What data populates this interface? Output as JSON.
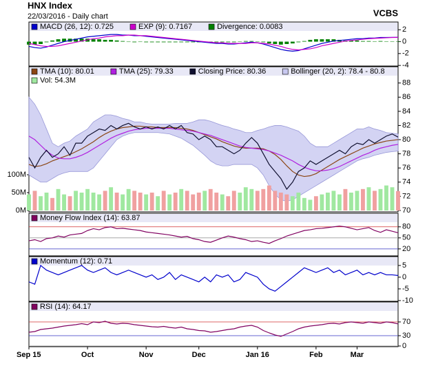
{
  "header": {
    "title": "HNX Index",
    "subtitle": "22/03/2016 - Daily chart",
    "brand": "VCBS"
  },
  "chart_data": [
    {
      "type": "line",
      "xlim": [
        0,
        63
      ],
      "ylim": [
        -4.1,
        3.3
      ],
      "yticks": [
        2,
        0,
        -2,
        -4
      ],
      "series": [
        {
          "name": "MACD (26, 12): 0.725",
          "type": "line",
          "color": "#0000cc",
          "values": [
            -0.8,
            -1,
            -1.1,
            -0.9,
            -0.6,
            -0.3,
            0,
            0.2,
            0.4,
            0.6,
            0.8,
            0.9,
            1,
            1.1,
            1.2,
            1.2,
            1.1,
            1.1,
            1,
            1,
            0.9,
            0.8,
            0.7,
            0.6,
            0.5,
            0.4,
            0.3,
            0.2,
            0.1,
            0,
            -0.1,
            -0.2,
            -0.3,
            -0.3,
            -0.4,
            -0.4,
            -0.3,
            -0.2,
            -0.1,
            -0.2,
            -0.4,
            -0.7,
            -1,
            -1.3,
            -1.5,
            -1.6,
            -1.5,
            -1.2,
            -0.9,
            -0.6,
            -0.3,
            -0.1,
            0.1,
            0.2,
            0.3,
            0.4,
            0.5,
            0.5,
            0.6,
            0.6,
            0.7,
            0.7,
            0.72,
            0.725
          ]
        },
        {
          "name": "EXP (9): 0.7167",
          "type": "line",
          "color": "#cc00cc",
          "values": [
            -0.3,
            -0.5,
            -0.7,
            -0.8,
            -0.8,
            -0.7,
            -0.5,
            -0.3,
            -0.1,
            0.1,
            0.3,
            0.5,
            0.6,
            0.8,
            0.9,
            1,
            1,
            1.1,
            1.1,
            1,
            1,
            0.9,
            0.8,
            0.7,
            0.6,
            0.5,
            0.4,
            0.3,
            0.2,
            0.1,
            0,
            -0.1,
            -0.2,
            -0.2,
            -0.3,
            -0.3,
            -0.3,
            -0.3,
            -0.2,
            -0.2,
            -0.3,
            -0.4,
            -0.6,
            -0.8,
            -1.1,
            -1.3,
            -1.4,
            -1.3,
            -1.2,
            -1,
            -0.7,
            -0.5,
            -0.3,
            -0.1,
            0.1,
            0.2,
            0.3,
            0.4,
            0.5,
            0.55,
            0.6,
            0.65,
            0.7,
            0.7167
          ]
        },
        {
          "name": "Divergence: 0.0083",
          "type": "bar",
          "color": "#008000",
          "values": [
            -0.5,
            -0.5,
            -0.4,
            -0.1,
            0.2,
            0.4,
            0.5,
            0.5,
            0.5,
            0.5,
            0.5,
            0.4,
            0.4,
            0.3,
            0.3,
            0.2,
            0.1,
            0,
            -0.1,
            0,
            -0.1,
            -0.1,
            -0.1,
            -0.1,
            -0.1,
            -0.1,
            -0.1,
            -0.1,
            -0.1,
            -0.1,
            -0.1,
            -0.1,
            -0.1,
            -0.1,
            -0.1,
            -0.1,
            0,
            0.1,
            0.1,
            0,
            -0.1,
            -0.3,
            -0.4,
            -0.5,
            -0.4,
            -0.3,
            -0.1,
            0.1,
            0.3,
            0.4,
            0.4,
            0.4,
            0.4,
            0.3,
            0.2,
            0.2,
            0.2,
            0.1,
            0.1,
            0.05,
            0.1,
            0.05,
            0.02,
            0.0083
          ]
        }
      ]
    },
    {
      "type": "line",
      "xlim": [
        0,
        63
      ],
      "ylim": [
        69.8,
        90.3
      ],
      "yticks": [
        70,
        72,
        74,
        76,
        78,
        80,
        82,
        84,
        86,
        88
      ],
      "y2lim": [
        -3.8,
        402
      ],
      "y2ticks": [
        {
          "value": 0,
          "label": "0M"
        },
        {
          "value": 50,
          "label": "50M"
        },
        {
          "value": 100,
          "label": "100M"
        }
      ],
      "series": [
        {
          "name": "TMA (10): 80.01",
          "type": "line",
          "color": "#8b4513",
          "values": [
            76.5,
            76.2,
            76.3,
            76.6,
            77,
            77.3,
            77.6,
            77.9,
            78.3,
            78.7,
            79.2,
            79.7,
            80.3,
            80.8,
            81.2,
            81.5,
            81.7,
            81.8,
            81.9,
            81.9,
            81.8,
            81.8,
            81.7,
            81.7,
            81.7,
            81.7,
            81.6,
            81.5,
            81.3,
            81,
            80.7,
            80.4,
            80.1,
            79.7,
            79.4,
            79.1,
            78.9,
            78.8,
            78.8,
            78.8,
            78.7,
            78.4,
            77.9,
            77.2,
            76.3,
            75.5,
            75,
            74.8,
            74.9,
            75.2,
            75.7,
            76.2,
            76.7,
            77.2,
            77.6,
            78,
            78.4,
            78.8,
            79.1,
            79.4,
            79.6,
            79.8,
            79.9,
            80.01
          ]
        },
        {
          "name": "TMA (25): 79.33",
          "type": "line",
          "color": "#b020e0",
          "values": [
            80.5,
            80,
            79.2,
            78.4,
            77.8,
            77.4,
            77.3,
            77.3,
            77.5,
            77.8,
            78.2,
            78.7,
            79.2,
            79.7,
            80.2,
            80.6,
            80.9,
            81.2,
            81.4,
            81.5,
            81.6,
            81.6,
            81.6,
            81.6,
            81.6,
            81.5,
            81.4,
            81.3,
            81.2,
            81,
            80.8,
            80.6,
            80.3,
            80,
            79.7,
            79.4,
            79.1,
            78.9,
            78.8,
            78.7,
            78.6,
            78.4,
            78.1,
            77.8,
            77.4,
            77,
            76.5,
            76.1,
            75.8,
            75.6,
            75.6,
            75.7,
            75.9,
            76.2,
            76.6,
            77,
            77.4,
            77.8,
            78.1,
            78.5,
            78.8,
            79,
            79.2,
            79.33
          ]
        },
        {
          "name": "Closing Price: 80.36",
          "type": "line",
          "color": "#101030",
          "values": [
            77.5,
            76,
            77.5,
            78.5,
            77.5,
            78,
            79,
            77.8,
            79.5,
            79.5,
            80.5,
            81,
            81.5,
            81.3,
            82,
            81.5,
            82,
            82.3,
            81.8,
            81.5,
            81.8,
            81.5,
            81.8,
            81.5,
            82,
            81.5,
            82,
            81,
            80.8,
            80,
            80.5,
            80,
            79,
            79,
            78.5,
            78,
            78.5,
            79.5,
            80.3,
            79.5,
            78,
            76.5,
            75.5,
            74.5,
            73,
            74,
            75.5,
            76,
            77,
            76.5,
            77,
            77.5,
            78,
            78.5,
            78,
            79,
            79.5,
            79.3,
            80,
            79.5,
            80,
            80.5,
            80.8,
            80.36
          ]
        },
        {
          "name": "Bollinger (20, 2): 78.4 - 80.8",
          "type": "band",
          "color": "#c8c8f0",
          "upper": [
            86,
            85,
            83.5,
            81.5,
            79.5,
            79,
            79.5,
            79.8,
            80.5,
            81,
            81.5,
            82.5,
            83,
            83.5,
            83.5,
            83.3,
            83,
            82.8,
            82.5,
            82.5,
            82.3,
            82.2,
            82.2,
            82.2,
            82.2,
            82.3,
            82.3,
            82.3,
            82.5,
            82.8,
            82.8,
            82.6,
            82.3,
            82,
            81.8,
            81.5,
            81.3,
            81,
            81,
            81.3,
            81.5,
            81.8,
            82,
            82,
            81.8,
            81.5,
            81.2,
            80.5,
            79.5,
            79,
            79,
            79,
            79.5,
            80,
            80.5,
            81,
            81.5,
            81.5,
            81.8,
            81.5,
            81.3,
            81,
            80.9,
            80.8
          ],
          "lower": [
            75,
            74.5,
            74,
            74,
            74.5,
            75,
            75.3,
            75.5,
            75.5,
            75.5,
            75.5,
            76,
            77,
            78,
            79,
            80,
            80.5,
            80.8,
            81,
            81,
            81,
            81,
            81,
            80.9,
            80.8,
            80.5,
            80.2,
            79.7,
            79.2,
            78.5,
            77.8,
            77,
            76.5,
            76.3,
            76.3,
            76.5,
            76.5,
            76.5,
            76.5,
            76,
            75,
            73.5,
            72.3,
            71.5,
            71.3,
            71.5,
            72,
            72.5,
            73,
            73.5,
            74,
            74.5,
            75,
            75.5,
            76,
            76.5,
            77,
            77.3,
            77.5,
            77.8,
            78,
            78.2,
            78.3,
            78.4
          ]
        },
        {
          "name": "Vol: 54.3M",
          "type": "bar",
          "axis": "y2",
          "color": "#a0e8a0",
          "up_color": "#a0e8a0",
          "down_color": "#f0a0a0",
          "values": [
            45,
            55,
            40,
            50,
            35,
            60,
            45,
            40,
            55,
            50,
            60,
            50,
            45,
            55,
            65,
            50,
            45,
            60,
            55,
            50,
            45,
            50,
            40,
            55,
            45,
            50,
            60,
            55,
            45,
            50,
            55,
            60,
            50,
            45,
            40,
            55,
            50,
            65,
            60,
            55,
            60,
            70,
            55,
            50,
            45,
            40,
            50,
            35,
            30,
            40,
            45,
            50,
            55,
            45,
            60,
            50,
            55,
            60,
            65,
            55,
            60,
            70,
            65,
            54.3
          ]
        }
      ]
    },
    {
      "type": "line",
      "xlim": [
        0,
        63
      ],
      "ylim": [
        1,
        117
      ],
      "yticks": [
        20,
        50,
        80
      ],
      "tick_colors": [
        "#3030c0",
        "#999999",
        "#d03030"
      ],
      "series": [
        {
          "name": "Money Flow Index (14): 63.87",
          "type": "line",
          "color": "#800060",
          "values": [
            42,
            45,
            40,
            48,
            50,
            55,
            52,
            58,
            60,
            62,
            70,
            75,
            72,
            78,
            80,
            75,
            76,
            74,
            72,
            70,
            66,
            64,
            62,
            60,
            58,
            55,
            52,
            54,
            48,
            45,
            40,
            38,
            44,
            50,
            55,
            52,
            48,
            45,
            40,
            42,
            38,
            35,
            42,
            48,
            55,
            60,
            65,
            70,
            72,
            75,
            76,
            78,
            80,
            82,
            80,
            76,
            72,
            75,
            78,
            70,
            65,
            72,
            68,
            63.87
          ]
        }
      ]
    },
    {
      "type": "line",
      "xlim": [
        0,
        63
      ],
      "ylim": [
        -10.3,
        8.8
      ],
      "yticks": [
        5,
        0,
        -5,
        -10
      ],
      "series": [
        {
          "name": "Momentum (12): 0.71",
          "type": "line",
          "color": "#0000cc",
          "values": [
            -2,
            -3,
            5,
            3,
            2,
            1,
            2,
            3,
            4,
            5,
            3,
            2,
            3,
            4,
            2,
            1,
            2,
            3,
            2,
            1,
            0,
            1,
            -1,
            0,
            2,
            -1,
            1,
            0,
            -1,
            -2,
            0,
            -2,
            1,
            0,
            1,
            -2,
            -1,
            2,
            1,
            0,
            -3,
            -5,
            -6,
            -4,
            -2,
            0,
            2,
            4,
            3,
            2,
            3,
            4,
            2,
            3,
            1,
            2,
            3,
            1,
            2,
            1,
            2,
            1,
            1,
            0.71
          ]
        }
      ]
    },
    {
      "type": "line",
      "xlim": [
        0,
        63
      ],
      "ylim": [
        -2,
        128
      ],
      "yticks": [
        0,
        30,
        70
      ],
      "tick_colors": [
        "#999999",
        "#3030c0",
        "#d03030"
      ],
      "xticks": [
        {
          "value": 0,
          "label": "Sep 15"
        },
        {
          "value": 10,
          "label": "Oct"
        },
        {
          "value": 20,
          "label": "Nov"
        },
        {
          "value": 29,
          "label": "Dec"
        },
        {
          "value": 39,
          "label": "Jan 16"
        },
        {
          "value": 49,
          "label": "Feb"
        },
        {
          "value": 56,
          "label": "Mar"
        }
      ],
      "series": [
        {
          "name": "RSI (14): 64.17",
          "type": "line",
          "color": "#800060",
          "values": [
            40,
            42,
            48,
            50,
            52,
            55,
            58,
            60,
            62,
            65,
            62,
            70,
            68,
            72,
            66,
            64,
            66,
            65,
            62,
            60,
            58,
            56,
            55,
            57,
            54,
            52,
            55,
            50,
            48,
            45,
            44,
            40,
            42,
            45,
            48,
            50,
            55,
            58,
            60,
            55,
            45,
            38,
            32,
            28,
            35,
            42,
            50,
            55,
            58,
            60,
            62,
            65,
            66,
            64,
            68,
            70,
            68,
            66,
            70,
            68,
            66,
            70,
            68,
            64.17
          ]
        }
      ]
    }
  ]
}
